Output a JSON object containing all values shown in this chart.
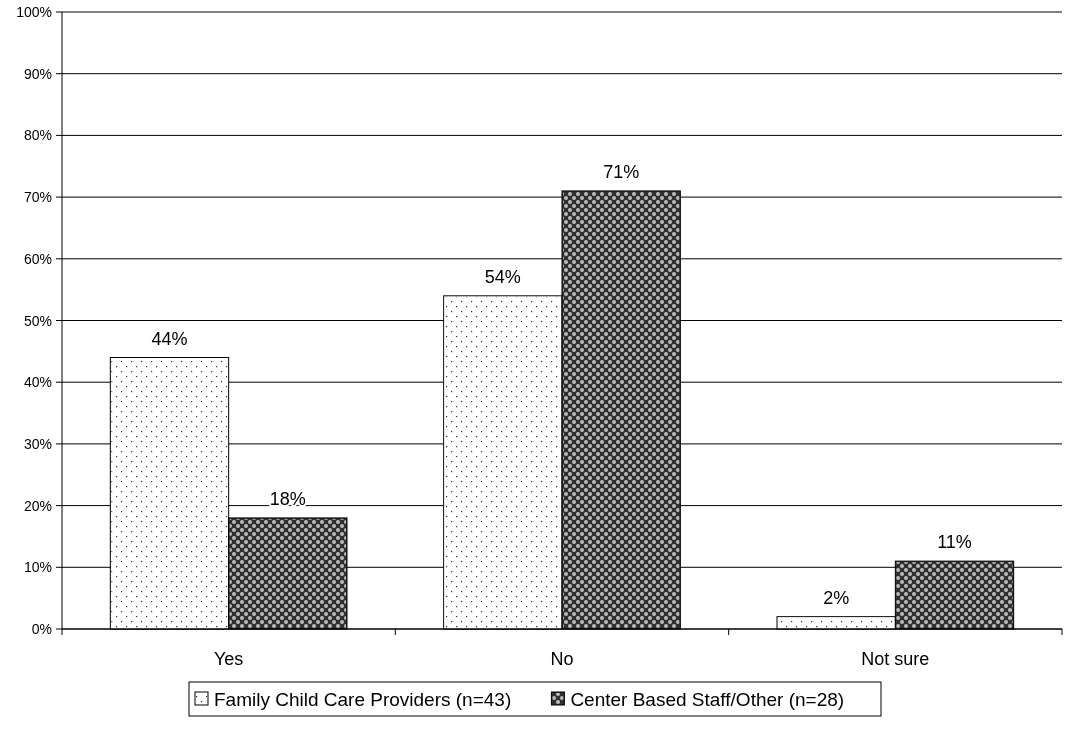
{
  "chart_data": {
    "type": "bar",
    "categories": [
      "Yes",
      "No",
      "Not sure"
    ],
    "series": [
      {
        "name": "Family Child Care Providers (n=43)",
        "color": "#ffffff",
        "values": [
          44,
          54,
          2
        ]
      },
      {
        "name": "Center Based Staff/Other (n=28)",
        "color": "#303030",
        "values": [
          18,
          71,
          11
        ]
      }
    ],
    "ylim": [
      0,
      100
    ],
    "yticks": [
      {
        "value": 0,
        "label": "0%"
      },
      {
        "value": 10,
        "label": "10%"
      },
      {
        "value": 20,
        "label": "20%"
      },
      {
        "value": 30,
        "label": "30%"
      },
      {
        "value": 40,
        "label": "40%"
      },
      {
        "value": 50,
        "label": "50%"
      },
      {
        "value": 60,
        "label": "60%"
      },
      {
        "value": 70,
        "label": "70%"
      },
      {
        "value": 80,
        "label": "80%"
      },
      {
        "value": 90,
        "label": "90%"
      },
      {
        "value": 100,
        "label": "100%"
      }
    ],
    "value_labels": [
      [
        "44%",
        "54%",
        "2%"
      ],
      [
        "18%",
        "71%",
        "11%"
      ]
    ],
    "grid": "y",
    "legend": "bottom"
  }
}
